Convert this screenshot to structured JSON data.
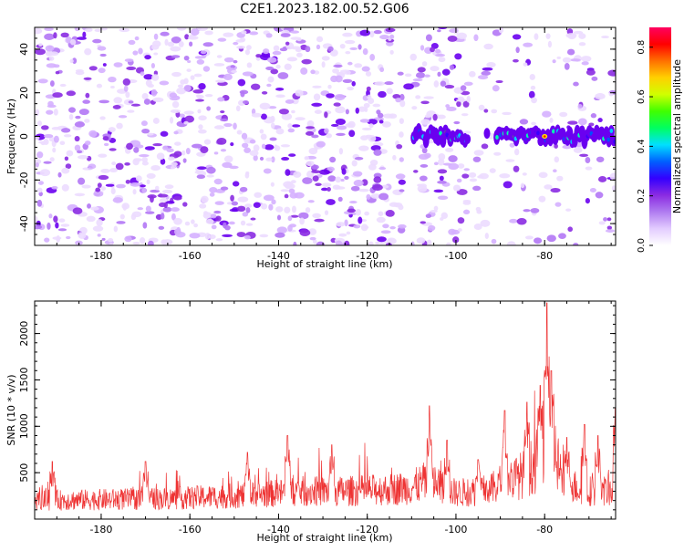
{
  "page_title": "C2E1.2023.182.00.52.G06",
  "chart_data": [
    {
      "type": "heatmap",
      "title": "C2E1.2023.182.00.52.G06",
      "xlabel": "Height of straight line (km)",
      "ylabel": "Frequency (Hz)",
      "xlim": [
        -195,
        -64
      ],
      "ylim": [
        -50,
        50
      ],
      "x_ticks": [
        -180,
        -160,
        -140,
        -120,
        -100,
        -80
      ],
      "x_tick_labels": [
        "-180",
        "-160",
        "-140",
        "-120",
        "-100",
        "-80"
      ],
      "y_ticks": [
        -40,
        -20,
        0,
        20,
        40
      ],
      "y_tick_labels": [
        "-40",
        "-20",
        "0",
        "20",
        "40"
      ],
      "colorbar": {
        "label": "Normalized spectral amplitude",
        "range": [
          0,
          0.88
        ],
        "ticks": [
          0.0,
          0.2,
          0.4,
          0.6,
          0.8
        ],
        "tick_labels": [
          "0.0",
          "0.2",
          "0.4",
          "0.6",
          "0.8"
        ],
        "colors": [
          "#ffffff",
          "#d9b3ff",
          "#8a2be2",
          "#0000ff",
          "#00ffff",
          "#00ff00",
          "#ffff00",
          "#ff8000",
          "#ff0000",
          "#ff0080"
        ]
      },
      "signal_band": {
        "frequency_hz": 0,
        "x_range": [
          -110,
          -64
        ],
        "peak_x": -80,
        "peak_value": 0.88
      },
      "grid": false
    },
    {
      "type": "line",
      "xlabel": "Height of straight line (km)",
      "ylabel": "SNR (10 * v/v)",
      "xlim": [
        -195,
        -64
      ],
      "ylim": [
        0,
        2350
      ],
      "x_ticks": [
        -180,
        -160,
        -140,
        -120,
        -100,
        -80
      ],
      "x_tick_labels": [
        "-180",
        "-160",
        "-140",
        "-120",
        "-100",
        "-80"
      ],
      "y_ticks": [
        500,
        1000,
        1500,
        2000
      ],
      "y_tick_labels": [
        "500",
        "1000",
        "1500",
        "2000"
      ],
      "color": "#ee3333",
      "baseline": [
        [
          -195,
          200
        ],
        [
          -180,
          210
        ],
        [
          -165,
          220
        ],
        [
          -155,
          240
        ],
        [
          -145,
          260
        ],
        [
          -135,
          300
        ],
        [
          -125,
          300
        ],
        [
          -115,
          320
        ],
        [
          -110,
          340
        ],
        [
          -106,
          420
        ],
        [
          -104,
          360
        ],
        [
          -100,
          280
        ],
        [
          -96,
          300
        ],
        [
          -92,
          320
        ],
        [
          -89,
          420
        ],
        [
          -86,
          450
        ],
        [
          -84,
          520
        ],
        [
          -82,
          600
        ],
        [
          -80,
          900
        ],
        [
          -79,
          1100
        ],
        [
          -78,
          800
        ],
        [
          -76,
          420
        ],
        [
          -72,
          320
        ],
        [
          -68,
          300
        ],
        [
          -64,
          310
        ]
      ],
      "peaks": [
        [
          -191,
          620
        ],
        [
          -170,
          620
        ],
        [
          -147,
          720
        ],
        [
          -138,
          900
        ],
        [
          -128,
          800
        ],
        [
          -106,
          1220
        ],
        [
          -102,
          850
        ],
        [
          -95,
          640
        ],
        [
          -89,
          1170
        ],
        [
          -84,
          1260
        ],
        [
          -81,
          1440
        ],
        [
          -79.5,
          2330
        ],
        [
          -78.5,
          1600
        ],
        [
          -75,
          880
        ],
        [
          -71,
          1020
        ],
        [
          -68,
          900
        ],
        [
          -64,
          1200
        ]
      ]
    }
  ]
}
